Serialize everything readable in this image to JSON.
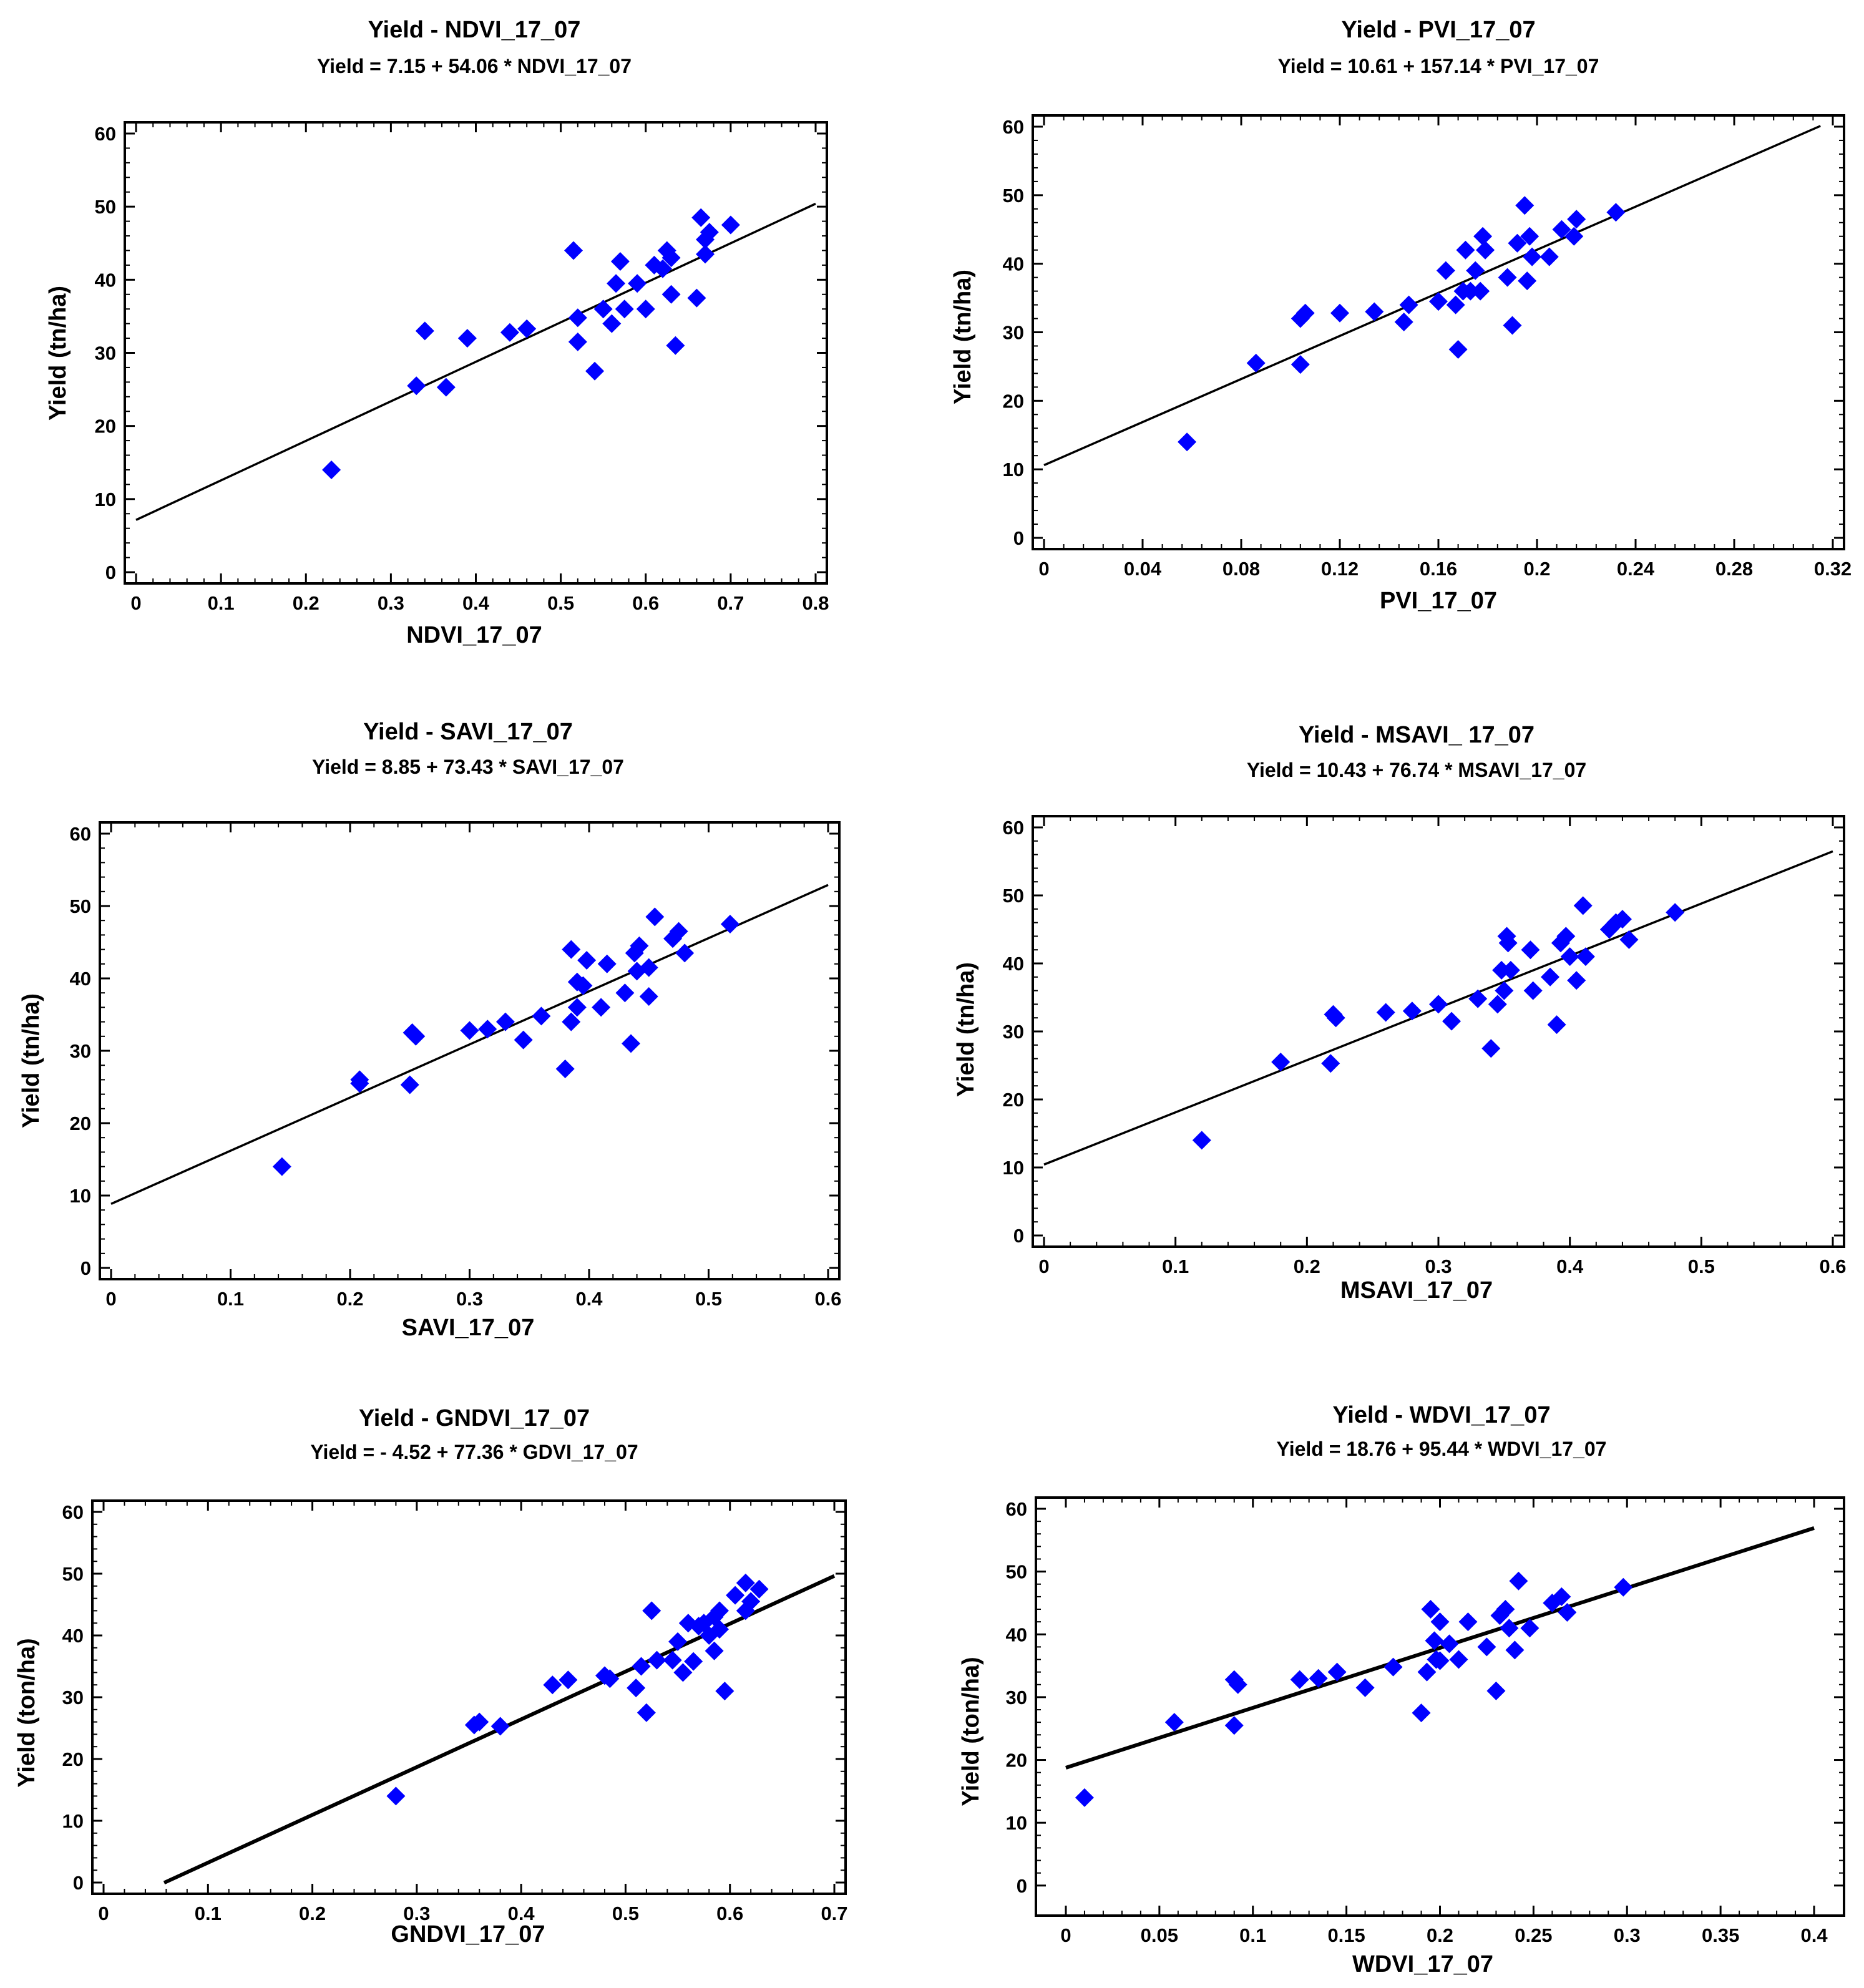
{
  "figure": {
    "point_color": "#0000FF",
    "line_color": "#000000"
  },
  "chart_data": [
    {
      "type": "scatter",
      "title": "Yield - NDVI_17_07",
      "subtitle": "Yield = 7.15 + 54.06 * NDVI_17_07",
      "xlabel": "NDVI_17_07",
      "ylabel": "Yield (tn/ha)",
      "xlim": [
        0,
        0.8
      ],
      "ylim": [
        0,
        60
      ],
      "xticks": [
        0,
        0.1,
        0.2,
        0.3,
        0.4,
        0.5,
        0.6,
        0.7,
        0.8
      ],
      "xtick_labels": [
        "0",
        "0.1",
        "0.2",
        "0.3",
        "0.4",
        "0.5",
        "0.6",
        "0.7",
        "0.8"
      ],
      "yticks": [
        0,
        10,
        20,
        30,
        40,
        50,
        60
      ],
      "ytick_labels": [
        "0",
        "10",
        "20",
        "30",
        "40",
        "50",
        "60"
      ],
      "fit": {
        "intercept": 7.15,
        "slope": 54.06,
        "x_range": [
          0,
          0.8
        ]
      },
      "points": [
        [
          0.23,
          14
        ],
        [
          0.33,
          25.5
        ],
        [
          0.34,
          33
        ],
        [
          0.365,
          25.3
        ],
        [
          0.39,
          32
        ],
        [
          0.44,
          32.8
        ],
        [
          0.46,
          33.3
        ],
        [
          0.515,
          44
        ],
        [
          0.52,
          34.8
        ],
        [
          0.52,
          31.5
        ],
        [
          0.54,
          27.5
        ],
        [
          0.55,
          36
        ],
        [
          0.56,
          34
        ],
        [
          0.565,
          39.5
        ],
        [
          0.57,
          42.5
        ],
        [
          0.575,
          36
        ],
        [
          0.59,
          39.5
        ],
        [
          0.6,
          36
        ],
        [
          0.61,
          42
        ],
        [
          0.62,
          41.5
        ],
        [
          0.625,
          44
        ],
        [
          0.63,
          43
        ],
        [
          0.63,
          38
        ],
        [
          0.635,
          31
        ],
        [
          0.66,
          37.5
        ],
        [
          0.665,
          48.5
        ],
        [
          0.67,
          45.5
        ],
        [
          0.67,
          43.5
        ],
        [
          0.675,
          46.5
        ],
        [
          0.7,
          47.5
        ]
      ]
    },
    {
      "type": "scatter",
      "title": "Yield - PVI_17_07",
      "subtitle": "Yield = 10.61 + 157.14 * PVI_17_07",
      "xlabel": "PVI_17_07",
      "ylabel": "Yield (tn/ha)",
      "xlim": [
        0,
        0.32
      ],
      "ylim": [
        0,
        60
      ],
      "xticks": [
        0,
        0.04,
        0.08,
        0.12,
        0.16,
        0.2,
        0.24,
        0.28,
        0.32
      ],
      "xtick_labels": [
        "0",
        "0.04",
        "0.08",
        "0.12",
        "0.16",
        "0.2",
        "0.24",
        "0.28",
        "0.32"
      ],
      "yticks": [
        0,
        10,
        20,
        30,
        40,
        50,
        60
      ],
      "ytick_labels": [
        "0",
        "10",
        "20",
        "30",
        "40",
        "50",
        "60"
      ],
      "fit": {
        "intercept": 10.61,
        "slope": 157.14,
        "x_range": [
          0,
          0.315
        ]
      },
      "points": [
        [
          0.058,
          14
        ],
        [
          0.086,
          25.5
        ],
        [
          0.104,
          25.3
        ],
        [
          0.104,
          32
        ],
        [
          0.106,
          32.8
        ],
        [
          0.12,
          32.8
        ],
        [
          0.134,
          33
        ],
        [
          0.146,
          31.5
        ],
        [
          0.148,
          34
        ],
        [
          0.16,
          34.5
        ],
        [
          0.163,
          39
        ],
        [
          0.167,
          34
        ],
        [
          0.168,
          27.5
        ],
        [
          0.17,
          36
        ],
        [
          0.171,
          42
        ],
        [
          0.173,
          36
        ],
        [
          0.175,
          39
        ],
        [
          0.177,
          36
        ],
        [
          0.178,
          44
        ],
        [
          0.179,
          42
        ],
        [
          0.188,
          38
        ],
        [
          0.19,
          31
        ],
        [
          0.192,
          43
        ],
        [
          0.195,
          48.5
        ],
        [
          0.196,
          37.5
        ],
        [
          0.197,
          44
        ],
        [
          0.198,
          41
        ],
        [
          0.205,
          41
        ],
        [
          0.21,
          45
        ],
        [
          0.215,
          44
        ],
        [
          0.216,
          46.5
        ],
        [
          0.232,
          47.5
        ]
      ]
    },
    {
      "type": "scatter",
      "title": "Yield - SAVI_17_07",
      "subtitle": "Yield = 8.85 + 73.43 * SAVI_17_07",
      "xlabel": "SAVI_17_07",
      "ylabel": "Yield (tn/ha)",
      "xlim": [
        0,
        0.6
      ],
      "ylim": [
        0,
        60
      ],
      "xticks": [
        0,
        0.1,
        0.2,
        0.3,
        0.4,
        0.5,
        0.6
      ],
      "xtick_labels": [
        "0",
        "0.1",
        "0.2",
        "0.3",
        "0.4",
        "0.5",
        "0.6"
      ],
      "yticks": [
        0,
        10,
        20,
        30,
        40,
        50,
        60
      ],
      "ytick_labels": [
        "0",
        "10",
        "20",
        "30",
        "40",
        "50",
        "60"
      ],
      "fit": {
        "intercept": 8.85,
        "slope": 73.43,
        "x_range": [
          0,
          0.6
        ]
      },
      "points": [
        [
          0.143,
          14
        ],
        [
          0.208,
          25.5
        ],
        [
          0.208,
          26
        ],
        [
          0.25,
          25.3
        ],
        [
          0.252,
          32.5
        ],
        [
          0.255,
          32
        ],
        [
          0.3,
          32.8
        ],
        [
          0.315,
          33
        ],
        [
          0.33,
          34
        ],
        [
          0.345,
          31.5
        ],
        [
          0.36,
          34.8
        ],
        [
          0.38,
          27.5
        ],
        [
          0.385,
          34
        ],
        [
          0.385,
          44
        ],
        [
          0.39,
          36
        ],
        [
          0.39,
          39.5
        ],
        [
          0.395,
          39
        ],
        [
          0.398,
          42.5
        ],
        [
          0.41,
          36
        ],
        [
          0.415,
          42
        ],
        [
          0.43,
          38
        ],
        [
          0.435,
          31
        ],
        [
          0.438,
          43.5
        ],
        [
          0.44,
          41
        ],
        [
          0.442,
          44.5
        ],
        [
          0.45,
          41.5
        ],
        [
          0.45,
          37.5
        ],
        [
          0.455,
          48.5
        ],
        [
          0.47,
          45.5
        ],
        [
          0.475,
          46.5
        ],
        [
          0.48,
          43.5
        ],
        [
          0.518,
          47.5
        ]
      ]
    },
    {
      "type": "scatter",
      "title": "Yield - MSAVI_ 17_07",
      "subtitle": "Yield = 10.43 + 76.74 * MSAVI_17_07",
      "xlabel": "MSAVI_17_07",
      "ylabel": "Yield (tn/ha)",
      "xlim": [
        0,
        0.6
      ],
      "ylim": [
        0,
        60
      ],
      "xticks": [
        0,
        0.1,
        0.2,
        0.3,
        0.4,
        0.5,
        0.6
      ],
      "xtick_labels": [
        "0",
        "0.1",
        "0.2",
        "0.3",
        "0.4",
        "0.5",
        "0.6"
      ],
      "yticks": [
        0,
        10,
        20,
        30,
        40,
        50,
        60
      ],
      "ytick_labels": [
        "0",
        "10",
        "20",
        "30",
        "40",
        "50",
        "60"
      ],
      "fit": {
        "intercept": 10.43,
        "slope": 76.74,
        "x_range": [
          0,
          0.6
        ]
      },
      "points": [
        [
          0.12,
          14
        ],
        [
          0.18,
          25.5
        ],
        [
          0.218,
          25.3
        ],
        [
          0.22,
          32.5
        ],
        [
          0.222,
          32
        ],
        [
          0.26,
          32.8
        ],
        [
          0.28,
          33
        ],
        [
          0.3,
          34
        ],
        [
          0.31,
          31.5
        ],
        [
          0.33,
          34.8
        ],
        [
          0.34,
          27.5
        ],
        [
          0.345,
          34
        ],
        [
          0.348,
          39
        ],
        [
          0.35,
          36
        ],
        [
          0.352,
          44
        ],
        [
          0.353,
          43
        ],
        [
          0.355,
          39
        ],
        [
          0.37,
          42
        ],
        [
          0.372,
          36
        ],
        [
          0.385,
          38
        ],
        [
          0.39,
          31
        ],
        [
          0.393,
          43
        ],
        [
          0.397,
          44
        ],
        [
          0.4,
          41
        ],
        [
          0.405,
          37.5
        ],
        [
          0.41,
          48.5
        ],
        [
          0.412,
          41
        ],
        [
          0.43,
          45
        ],
        [
          0.435,
          46
        ],
        [
          0.44,
          46.5
        ],
        [
          0.445,
          43.5
        ],
        [
          0.48,
          47.5
        ]
      ]
    },
    {
      "type": "scatter",
      "title": "Yield - GNDVI_17_07",
      "subtitle": "Yield = - 4.52 + 77.36 * GDVI_17_07",
      "xlabel": "GNDVI_17_07",
      "ylabel": "Yield (ton/ha)",
      "xlim": [
        0,
        0.7
      ],
      "ylim": [
        0,
        60
      ],
      "xticks": [
        0,
        0.1,
        0.2,
        0.3,
        0.4,
        0.5,
        0.6,
        0.7
      ],
      "xtick_labels": [
        "0",
        "0.1",
        "0.2",
        "0.3",
        "0.4",
        "0.5",
        "0.6",
        "0.7"
      ],
      "yticks": [
        0,
        10,
        20,
        30,
        40,
        50,
        60
      ],
      "ytick_labels": [
        "0",
        "10",
        "20",
        "30",
        "40",
        "50",
        "60"
      ],
      "fit": {
        "intercept": -4.52,
        "slope": 77.36,
        "x_range": [
          0.058,
          0.7
        ]
      },
      "points": [
        [
          0.28,
          14
        ],
        [
          0.355,
          25.5
        ],
        [
          0.36,
          26
        ],
        [
          0.38,
          25.3
        ],
        [
          0.43,
          32
        ],
        [
          0.445,
          32.8
        ],
        [
          0.48,
          33.5
        ],
        [
          0.485,
          33
        ],
        [
          0.51,
          31.5
        ],
        [
          0.515,
          35
        ],
        [
          0.52,
          27.5
        ],
        [
          0.525,
          44
        ],
        [
          0.53,
          36
        ],
        [
          0.545,
          36
        ],
        [
          0.55,
          39
        ],
        [
          0.555,
          34
        ],
        [
          0.56,
          42
        ],
        [
          0.565,
          35.8
        ],
        [
          0.57,
          41.5
        ],
        [
          0.575,
          42
        ],
        [
          0.58,
          40
        ],
        [
          0.585,
          43
        ],
        [
          0.585,
          37.5
        ],
        [
          0.59,
          44
        ],
        [
          0.59,
          41
        ],
        [
          0.595,
          31
        ],
        [
          0.605,
          46.5
        ],
        [
          0.615,
          48.5
        ],
        [
          0.615,
          44
        ],
        [
          0.62,
          45.5
        ],
        [
          0.628,
          47.5
        ]
      ]
    },
    {
      "type": "scatter",
      "title": "Yield - WDVI_17_07",
      "subtitle": "Yield = 18.76 + 95.44 * WDVI_17_07",
      "xlabel": "WDVI_17_07",
      "ylabel": "Yield (ton/ha)",
      "xlim": [
        -0.01,
        0.41
      ],
      "ylim": [
        -3,
        60
      ],
      "xticks": [
        0,
        0.05,
        0.1,
        0.15,
        0.2,
        0.25,
        0.3,
        0.35,
        0.4
      ],
      "xtick_labels": [
        "0",
        "0.05",
        "0.1",
        "0.15",
        "0.2",
        "0.25",
        "0.3",
        "0.35",
        "0.4"
      ],
      "yticks": [
        0,
        10,
        20,
        30,
        40,
        50,
        60
      ],
      "ytick_labels": [
        "0",
        "10",
        "20",
        "30",
        "40",
        "50",
        "60"
      ],
      "fit": {
        "intercept": 18.76,
        "slope": 95.44,
        "x_range": [
          0,
          0.4
        ]
      },
      "points": [
        [
          0.01,
          14
        ],
        [
          0.058,
          26
        ],
        [
          0.09,
          25.5
        ],
        [
          0.09,
          32.8
        ],
        [
          0.092,
          32
        ],
        [
          0.125,
          32.8
        ],
        [
          0.135,
          33
        ],
        [
          0.145,
          34
        ],
        [
          0.16,
          31.5
        ],
        [
          0.175,
          34.8
        ],
        [
          0.19,
          27.5
        ],
        [
          0.193,
          34
        ],
        [
          0.195,
          44
        ],
        [
          0.197,
          39
        ],
        [
          0.198,
          36
        ],
        [
          0.2,
          42
        ],
        [
          0.2,
          35.8
        ],
        [
          0.205,
          38.5
        ],
        [
          0.21,
          36
        ],
        [
          0.215,
          42
        ],
        [
          0.225,
          38
        ],
        [
          0.23,
          31
        ],
        [
          0.232,
          43
        ],
        [
          0.235,
          44
        ],
        [
          0.237,
          41
        ],
        [
          0.24,
          37.5
        ],
        [
          0.242,
          48.5
        ],
        [
          0.248,
          41
        ],
        [
          0.26,
          45
        ],
        [
          0.265,
          46
        ],
        [
          0.268,
          43.5
        ],
        [
          0.298,
          47.5
        ]
      ]
    }
  ]
}
